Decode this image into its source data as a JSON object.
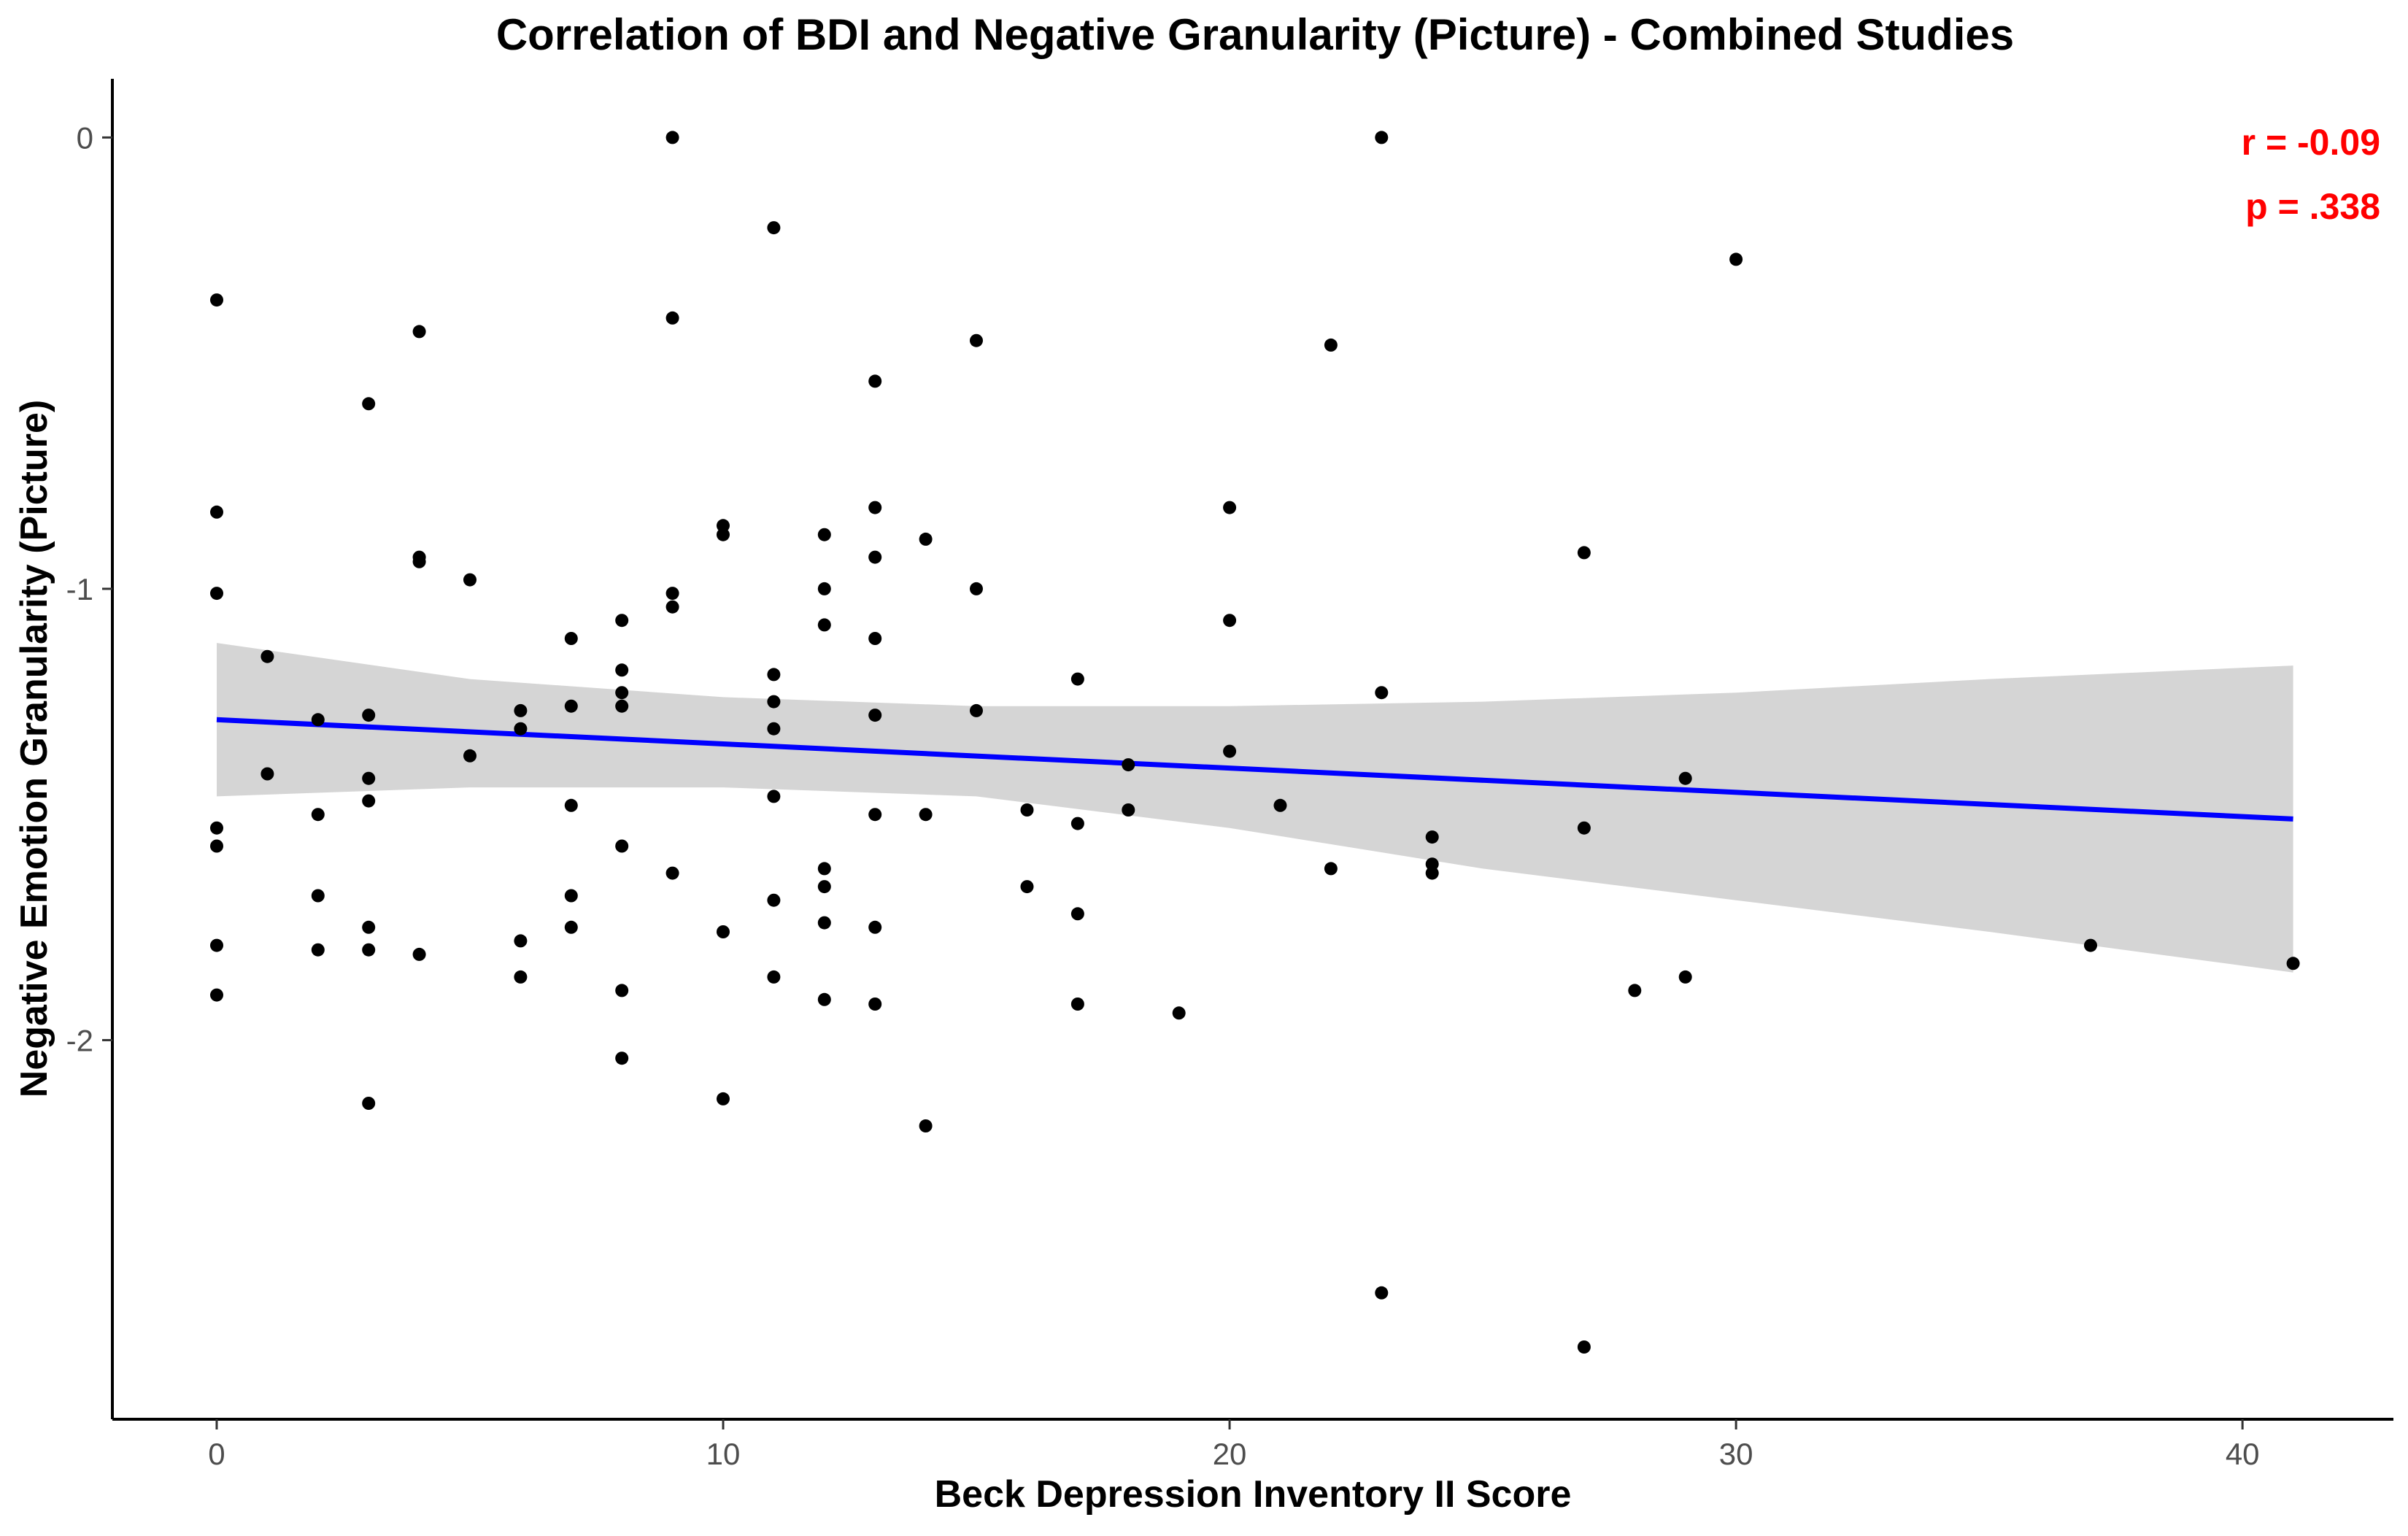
{
  "chart_data": {
    "type": "scatter",
    "title": "Correlation of BDI and Negative Granularity (Picture) - Combined Studies",
    "xlabel": "Beck Depression Inventory II Score",
    "ylabel": "Negative Emotion Granularity (Picture)",
    "xlim": [
      -2.06,
      42.98
    ],
    "ylim": [
      -2.84,
      0.13
    ],
    "xticks": [
      0,
      10,
      20,
      30,
      40
    ],
    "xtick_labels": [
      "0",
      "10",
      "20",
      "30",
      "40"
    ],
    "yticks": [
      0,
      -1,
      -2
    ],
    "ytick_labels": [
      "0",
      "-1",
      "-2"
    ],
    "grid": false,
    "legend": "none",
    "annotations": {
      "r": "r = -0.09",
      "p": "p = .338"
    },
    "fit_line": {
      "x": [
        0,
        41
      ],
      "y": [
        -1.29,
        -1.51
      ]
    },
    "confidence_band": {
      "x": [
        0,
        5,
        10,
        15,
        20,
        25,
        30,
        35,
        41
      ],
      "upper": [
        -1.12,
        -1.2,
        -1.24,
        -1.26,
        -1.26,
        -1.25,
        -1.23,
        -1.2,
        -1.17
      ],
      "lower": [
        -1.46,
        -1.44,
        -1.44,
        -1.46,
        -1.53,
        -1.62,
        -1.69,
        -1.76,
        -1.85
      ]
    },
    "points": [
      {
        "x": 0,
        "y": -0.36
      },
      {
        "x": 0,
        "y": -0.83
      },
      {
        "x": 0,
        "y": -1.01
      },
      {
        "x": 0,
        "y": -1.53
      },
      {
        "x": 0,
        "y": -1.57
      },
      {
        "x": 0,
        "y": -1.79
      },
      {
        "x": 0,
        "y": -1.9
      },
      {
        "x": 1,
        "y": -1.15
      },
      {
        "x": 1,
        "y": -1.41
      },
      {
        "x": 2,
        "y": -1.29
      },
      {
        "x": 2,
        "y": -1.5
      },
      {
        "x": 2,
        "y": -1.68
      },
      {
        "x": 2,
        "y": -1.8
      },
      {
        "x": 3,
        "y": -0.59
      },
      {
        "x": 3,
        "y": -1.28
      },
      {
        "x": 3,
        "y": -1.42
      },
      {
        "x": 3,
        "y": -1.47
      },
      {
        "x": 3,
        "y": -1.75
      },
      {
        "x": 3,
        "y": -1.8
      },
      {
        "x": 3,
        "y": -2.14
      },
      {
        "x": 4,
        "y": -0.43
      },
      {
        "x": 4,
        "y": -0.93
      },
      {
        "x": 4,
        "y": -0.94
      },
      {
        "x": 4,
        "y": -1.81
      },
      {
        "x": 5,
        "y": -0.98
      },
      {
        "x": 5,
        "y": -1.37
      },
      {
        "x": 6,
        "y": -1.27
      },
      {
        "x": 6,
        "y": -1.31
      },
      {
        "x": 6,
        "y": -1.78
      },
      {
        "x": 6,
        "y": -1.86
      },
      {
        "x": 7,
        "y": -1.11
      },
      {
        "x": 7,
        "y": -1.26
      },
      {
        "x": 7,
        "y": -1.48
      },
      {
        "x": 7,
        "y": -1.68
      },
      {
        "x": 7,
        "y": -1.75
      },
      {
        "x": 8,
        "y": -1.07
      },
      {
        "x": 8,
        "y": -1.18
      },
      {
        "x": 8,
        "y": -1.23
      },
      {
        "x": 8,
        "y": -1.26
      },
      {
        "x": 8,
        "y": -1.57
      },
      {
        "x": 8,
        "y": -1.89
      },
      {
        "x": 8,
        "y": -2.04
      },
      {
        "x": 9,
        "y": 0.0
      },
      {
        "x": 9,
        "y": -0.4
      },
      {
        "x": 9,
        "y": -1.01
      },
      {
        "x": 9,
        "y": -1.04
      },
      {
        "x": 9,
        "y": -1.63
      },
      {
        "x": 10,
        "y": -0.86
      },
      {
        "x": 10,
        "y": -0.88
      },
      {
        "x": 10,
        "y": -1.76
      },
      {
        "x": 10,
        "y": -2.13
      },
      {
        "x": 11,
        "y": -0.2
      },
      {
        "x": 11,
        "y": -1.19
      },
      {
        "x": 11,
        "y": -1.25
      },
      {
        "x": 11,
        "y": -1.31
      },
      {
        "x": 11,
        "y": -1.46
      },
      {
        "x": 11,
        "y": -1.69
      },
      {
        "x": 11,
        "y": -1.86
      },
      {
        "x": 12,
        "y": -0.88
      },
      {
        "x": 12,
        "y": -1.0
      },
      {
        "x": 12,
        "y": -1.08
      },
      {
        "x": 12,
        "y": -1.62
      },
      {
        "x": 12,
        "y": -1.66
      },
      {
        "x": 12,
        "y": -1.74
      },
      {
        "x": 12,
        "y": -1.91
      },
      {
        "x": 13,
        "y": -0.54
      },
      {
        "x": 13,
        "y": -0.82
      },
      {
        "x": 13,
        "y": -0.93
      },
      {
        "x": 13,
        "y": -1.11
      },
      {
        "x": 13,
        "y": -1.28
      },
      {
        "x": 13,
        "y": -1.5
      },
      {
        "x": 13,
        "y": -1.75
      },
      {
        "x": 13,
        "y": -1.92
      },
      {
        "x": 14,
        "y": -0.89
      },
      {
        "x": 14,
        "y": -1.5
      },
      {
        "x": 14,
        "y": -2.19
      },
      {
        "x": 15,
        "y": -0.45
      },
      {
        "x": 15,
        "y": -1.0
      },
      {
        "x": 15,
        "y": -1.27
      },
      {
        "x": 16,
        "y": -1.49
      },
      {
        "x": 16,
        "y": -1.66
      },
      {
        "x": 17,
        "y": -1.2
      },
      {
        "x": 17,
        "y": -1.52
      },
      {
        "x": 17,
        "y": -1.72
      },
      {
        "x": 17,
        "y": -1.92
      },
      {
        "x": 18,
        "y": -1.39
      },
      {
        "x": 18,
        "y": -1.49
      },
      {
        "x": 19,
        "y": -1.94
      },
      {
        "x": 20,
        "y": -0.82
      },
      {
        "x": 20,
        "y": -1.07
      },
      {
        "x": 20,
        "y": -1.36
      },
      {
        "x": 21,
        "y": -1.48
      },
      {
        "x": 22,
        "y": -0.46
      },
      {
        "x": 22,
        "y": -1.62
      },
      {
        "x": 23,
        "y": 0.0
      },
      {
        "x": 23,
        "y": -1.23
      },
      {
        "x": 23,
        "y": -2.56
      },
      {
        "x": 24,
        "y": -1.55
      },
      {
        "x": 24,
        "y": -1.61
      },
      {
        "x": 24,
        "y": -1.63
      },
      {
        "x": 27,
        "y": -0.92
      },
      {
        "x": 27,
        "y": -1.53
      },
      {
        "x": 27,
        "y": -2.68
      },
      {
        "x": 28,
        "y": -1.89
      },
      {
        "x": 29,
        "y": -1.42
      },
      {
        "x": 29,
        "y": -1.86
      },
      {
        "x": 30,
        "y": -0.27
      },
      {
        "x": 37,
        "y": -1.79
      },
      {
        "x": 41,
        "y": -1.83
      }
    ]
  }
}
